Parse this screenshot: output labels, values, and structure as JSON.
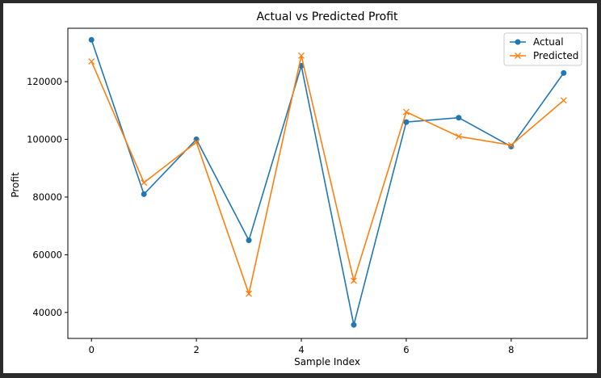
{
  "chart_data": {
    "type": "line",
    "title": "Actual vs Predicted Profit",
    "xlabel": "Sample Index",
    "ylabel": "Profit",
    "x": [
      0,
      1,
      2,
      3,
      4,
      5,
      6,
      7,
      8,
      9
    ],
    "xlim": [
      -0.45,
      9.45
    ],
    "ylim": [
      31000,
      138500
    ],
    "xticks": [
      0,
      2,
      4,
      6,
      8
    ],
    "yticks": [
      40000,
      60000,
      80000,
      100000,
      120000
    ],
    "grid": false,
    "legend_position": "top-right",
    "series": [
      {
        "name": "Actual",
        "marker": "circle",
        "color": "#1f77b4",
        "values": [
          134500,
          81000,
          100000,
          65000,
          125500,
          35700,
          106000,
          107500,
          97500,
          123000
        ]
      },
      {
        "name": "Predicted",
        "marker": "x",
        "color": "#ff7f0e",
        "values": [
          127000,
          85000,
          99000,
          46500,
          129000,
          51000,
          109500,
          101000,
          98000,
          113500
        ]
      }
    ]
  }
}
